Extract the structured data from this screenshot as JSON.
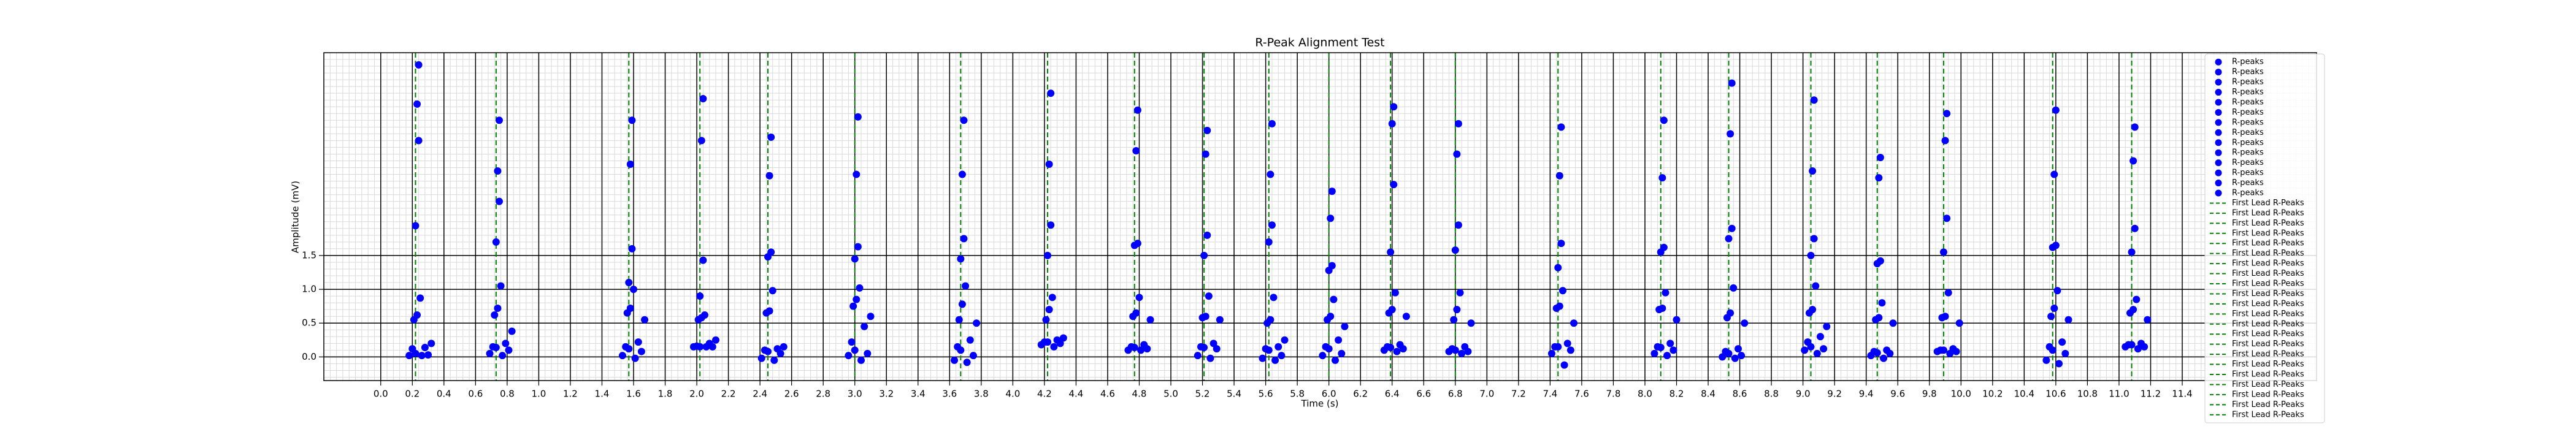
{
  "chart_data": {
    "type": "scatter",
    "title": "R-Peak Alignment Test",
    "x_label": "Time (s)",
    "y_label": "Amplitude (mV)",
    "xlim": [
      -0.36,
      12.25
    ],
    "ylim": [
      -0.35,
      4.5
    ],
    "xticks": [
      {
        "value": 0,
        "label": "0.0"
      },
      0.2,
      0.4,
      0.6,
      0.8,
      {
        "value": 1,
        "label": "1.0"
      },
      1.2,
      1.4,
      1.6,
      1.8,
      {
        "value": 2,
        "label": "2.0"
      },
      2.2,
      2.4,
      2.6,
      2.8,
      {
        "value": 3,
        "label": "3.0"
      },
      3.2,
      3.4,
      3.6,
      3.8,
      {
        "value": 4,
        "label": "4.0"
      },
      4.2,
      4.4,
      4.6,
      4.8,
      {
        "value": 5,
        "label": "5.0"
      },
      5.2,
      5.4,
      5.6,
      5.8,
      {
        "value": 6,
        "label": "6.0"
      },
      6.2,
      6.4,
      6.6,
      6.8,
      {
        "value": 7,
        "label": "7.0"
      },
      7.2,
      7.4,
      7.6,
      7.8,
      {
        "value": 8,
        "label": "8.0"
      },
      8.2,
      8.4,
      8.6,
      8.8,
      {
        "value": 9,
        "label": "9.0"
      },
      9.2,
      9.4,
      9.6,
      9.8,
      {
        "value": 10,
        "label": "10.0"
      },
      10.2,
      10.4,
      10.6,
      10.8,
      {
        "value": 11,
        "label": "11.0"
      },
      11.2,
      11.4
    ],
    "yticks": [
      {
        "value": 0,
        "label": "0.0"
      },
      0.5,
      {
        "value": 1,
        "label": "1.0"
      },
      1.5
    ],
    "grid": true,
    "minor_grid": true,
    "legend": "upper right",
    "series": [
      {
        "name": "R-peaks",
        "color": "#0000ff",
        "x": [
          0.24,
          0.75,
          1.59,
          2.04,
          2.47,
          3.02,
          3.69,
          4.24,
          4.79,
          5.23,
          5.64,
          6.02,
          6.41,
          6.82,
          7.47,
          8.12,
          8.55,
          9.07,
          9.49,
          9.91,
          10.6,
          11.1
        ],
        "y": [
          4.32,
          3.5,
          3.5,
          3.82,
          3.25,
          3.55,
          3.5,
          3.9,
          3.65,
          3.35,
          3.45,
          2.45,
          3.7,
          3.45,
          3.4,
          3.5,
          4.05,
          3.8,
          2.95,
          3.6,
          3.65,
          3.4
        ]
      },
      {
        "name": "R-peaks",
        "color": "#0000ff",
        "x": [
          0.23,
          0.74,
          1.58,
          2.03,
          2.46,
          3.01,
          3.68,
          4.23,
          4.78,
          5.22,
          5.63,
          6.01,
          6.4,
          6.81,
          7.46,
          8.11,
          8.54,
          9.06,
          9.48,
          9.9,
          10.59,
          11.09
        ],
        "y": [
          3.74,
          2.75,
          2.85,
          3.2,
          2.68,
          2.7,
          2.7,
          2.85,
          3.05,
          3.0,
          2.7,
          2.05,
          3.45,
          3.0,
          2.68,
          2.65,
          3.3,
          2.75,
          2.65,
          3.2,
          2.7,
          2.9
        ]
      },
      {
        "name": "R-peaks",
        "color": "#0000ff",
        "x": [
          0.24,
          0.75,
          1.59,
          2.04,
          2.47,
          3.02,
          3.69,
          4.24,
          4.79,
          5.23,
          5.64,
          6.02,
          6.41,
          6.82,
          7.47,
          8.12,
          8.55,
          9.07,
          9.49,
          9.91,
          10.6,
          11.1
        ],
        "y": [
          3.2,
          2.3,
          1.6,
          1.43,
          1.55,
          1.63,
          1.75,
          1.95,
          1.68,
          1.8,
          1.95,
          1.35,
          2.55,
          1.95,
          1.68,
          1.62,
          1.9,
          1.75,
          1.42,
          2.05,
          1.65,
          1.9
        ]
      },
      {
        "name": "R-peaks",
        "color": "#0000ff",
        "x": [
          0.22,
          0.73,
          1.57,
          2.02,
          2.45,
          3.0,
          3.67,
          4.22,
          4.77,
          5.21,
          5.62,
          6.0,
          6.39,
          6.8,
          7.45,
          8.1,
          8.53,
          9.05,
          9.47,
          9.89,
          10.58,
          11.08
        ],
        "y": [
          1.94,
          1.7,
          1.1,
          0.9,
          1.48,
          1.45,
          1.45,
          1.5,
          1.65,
          1.5,
          1.7,
          1.28,
          1.55,
          1.58,
          1.32,
          1.55,
          1.75,
          1.5,
          1.38,
          1.55,
          1.62,
          1.55
        ]
      },
      {
        "name": "R-peaks",
        "color": "#0000ff",
        "x": [
          0.25,
          0.76,
          1.6,
          2.05,
          2.48,
          3.03,
          3.7,
          4.25,
          4.8,
          5.24,
          5.65,
          6.03,
          6.42,
          6.83,
          7.48,
          8.13,
          8.56,
          9.08,
          9.5,
          9.92,
          10.61,
          11.11
        ],
        "y": [
          0.87,
          1.05,
          1.0,
          0.62,
          0.98,
          1.02,
          1.05,
          0.88,
          0.88,
          0.9,
          0.88,
          0.85,
          0.95,
          0.95,
          0.98,
          0.95,
          1.02,
          1.05,
          0.8,
          0.95,
          0.98,
          0.85
        ]
      },
      {
        "name": "R-peaks",
        "color": "#0000ff",
        "x": [
          0.23,
          0.74,
          1.58,
          2.03,
          2.46,
          3.01,
          3.68,
          4.23,
          4.78,
          5.22,
          5.63,
          6.01,
          6.4,
          6.81,
          7.46,
          8.11,
          8.54,
          9.06,
          9.48,
          9.9,
          10.59,
          11.09
        ],
        "y": [
          0.62,
          0.72,
          0.72,
          0.58,
          0.68,
          0.85,
          0.78,
          0.7,
          0.65,
          0.6,
          0.55,
          0.6,
          0.7,
          0.7,
          0.75,
          0.72,
          0.65,
          0.7,
          0.58,
          0.6,
          0.72,
          0.7
        ]
      },
      {
        "name": "R-peaks",
        "color": "#0000ff",
        "x": [
          0.21,
          0.72,
          1.56,
          2.01,
          2.44,
          2.99,
          3.66,
          4.21,
          4.76,
          5.2,
          5.61,
          5.99,
          6.38,
          6.79,
          7.44,
          8.09,
          8.52,
          9.04,
          9.46,
          9.88,
          10.57,
          11.07
        ],
        "y": [
          0.55,
          0.62,
          0.65,
          0.55,
          0.65,
          0.75,
          0.55,
          0.55,
          0.6,
          0.58,
          0.5,
          0.55,
          0.65,
          0.55,
          0.72,
          0.7,
          0.58,
          0.65,
          0.55,
          0.58,
          0.6,
          0.65
        ]
      },
      {
        "name": "R-peaks",
        "color": "#0000ff",
        "x": [
          0.32,
          0.83,
          1.67,
          2.12,
          2.55,
          3.1,
          3.77,
          4.32,
          4.87,
          5.31,
          5.72,
          6.1,
          6.49,
          6.9,
          7.55,
          8.2,
          8.63,
          9.15,
          9.57,
          9.99,
          10.68,
          11.18
        ],
        "y": [
          0.2,
          0.38,
          0.55,
          0.25,
          0.15,
          0.6,
          0.5,
          0.28,
          0.55,
          0.55,
          0.25,
          0.45,
          0.6,
          0.5,
          0.5,
          0.55,
          0.5,
          0.45,
          0.5,
          0.5,
          0.55,
          0.55
        ]
      },
      {
        "name": "R-peaks",
        "color": "#0000ff",
        "x": [
          0.28,
          0.79,
          1.63,
          2.08,
          2.51,
          3.06,
          3.73,
          4.28,
          4.83,
          5.27,
          5.68,
          6.06,
          6.45,
          6.86,
          7.51,
          8.16,
          8.59,
          9.11,
          9.53,
          9.95,
          10.64,
          11.14
        ],
        "y": [
          0.14,
          0.2,
          0.22,
          0.2,
          0.12,
          0.45,
          0.25,
          0.25,
          0.18,
          0.2,
          0.15,
          0.25,
          0.18,
          0.15,
          0.2,
          0.2,
          0.12,
          0.3,
          0.1,
          0.12,
          0.22,
          0.2
        ]
      },
      {
        "name": "R-peaks",
        "color": "#0000ff",
        "x": [
          0.2,
          0.71,
          1.55,
          2.0,
          2.43,
          2.98,
          3.65,
          4.2,
          4.75,
          5.19,
          5.6,
          5.98,
          6.37,
          6.78,
          7.43,
          8.08,
          8.51,
          9.03,
          9.45,
          9.87,
          10.56,
          11.06
        ],
        "y": [
          0.12,
          0.15,
          0.15,
          0.16,
          0.1,
          0.22,
          0.15,
          0.22,
          0.15,
          0.15,
          0.12,
          0.15,
          0.15,
          0.12,
          0.15,
          0.15,
          0.08,
          0.22,
          0.08,
          0.1,
          0.15,
          0.18
        ]
      },
      {
        "name": "R-peaks",
        "color": "#0000ff",
        "x": [
          0.22,
          0.73,
          1.57,
          2.02,
          2.45,
          3.0,
          3.67,
          4.22,
          4.77,
          5.21,
          5.62,
          6.0,
          6.39,
          6.8,
          7.45,
          8.1,
          8.53,
          9.05,
          9.47,
          9.89,
          10.58,
          11.08
        ],
        "y": [
          0.05,
          0.14,
          0.12,
          0.15,
          0.08,
          0.1,
          0.1,
          0.22,
          0.14,
          0.14,
          0.1,
          0.12,
          0.14,
          0.1,
          0.15,
          0.14,
          0.05,
          0.15,
          0.06,
          0.1,
          0.1,
          0.18
        ]
      },
      {
        "name": "R-peaks",
        "color": "#0000ff",
        "x": [
          0.3,
          0.81,
          1.65,
          2.1,
          2.53,
          3.08,
          3.75,
          4.3,
          4.85,
          5.29,
          5.7,
          6.08,
          6.47,
          6.88,
          7.53,
          8.18,
          8.61,
          9.13,
          9.55,
          9.97,
          10.66,
          11.16
        ],
        "y": [
          0.03,
          0.1,
          0.08,
          0.15,
          0.05,
          0.05,
          0.02,
          0.2,
          0.12,
          0.12,
          0.02,
          0.05,
          0.12,
          0.08,
          0.1,
          0.1,
          0.02,
          0.12,
          0.05,
          0.08,
          0.05,
          0.15
        ]
      },
      {
        "name": "R-peaks",
        "color": "#0000ff",
        "x": [
          0.18,
          0.69,
          1.53,
          1.98,
          2.41,
          2.96,
          3.63,
          4.18,
          4.73,
          5.17,
          5.58,
          5.96,
          6.35,
          6.76,
          7.41,
          8.06,
          8.49,
          9.01,
          9.43,
          9.85,
          10.54,
          11.04
        ],
        "y": [
          0.02,
          0.05,
          0.02,
          0.15,
          -0.02,
          0.02,
          -0.05,
          0.18,
          0.1,
          0.02,
          -0.02,
          0.02,
          0.1,
          0.08,
          0.05,
          0.05,
          0.0,
          0.1,
          0.02,
          0.08,
          -0.05,
          0.15
        ]
      },
      {
        "name": "R-peaks",
        "color": "#0000ff",
        "x": [
          0.26,
          0.77,
          1.61,
          2.06,
          2.49,
          3.04,
          3.71,
          4.26,
          4.81,
          5.25,
          5.66,
          6.04,
          6.43,
          6.84,
          7.49,
          8.14,
          8.57,
          9.09,
          9.51,
          9.93,
          10.62,
          11.12
        ],
        "y": [
          0.02,
          0.02,
          -0.02,
          0.15,
          -0.05,
          -0.05,
          -0.08,
          0.15,
          0.1,
          -0.02,
          -0.05,
          -0.05,
          0.08,
          0.05,
          -0.12,
          0.02,
          -0.02,
          0.05,
          -0.02,
          0.05,
          -0.1,
          0.12
        ]
      }
    ],
    "vlines": [
      {
        "name": "First Lead R-Peaks",
        "color": "#008000",
        "x": 0.22
      },
      {
        "name": "First Lead R-Peaks",
        "color": "#008000",
        "x": 0.73
      },
      {
        "name": "First Lead R-Peaks",
        "color": "#008000",
        "x": 1.57
      },
      {
        "name": "First Lead R-Peaks",
        "color": "#008000",
        "x": 2.02
      },
      {
        "name": "First Lead R-Peaks",
        "color": "#008000",
        "x": 2.45
      },
      {
        "name": "First Lead R-Peaks",
        "color": "#008000",
        "x": 3.0
      },
      {
        "name": "First Lead R-Peaks",
        "color": "#008000",
        "x": 3.67
      },
      {
        "name": "First Lead R-Peaks",
        "color": "#008000",
        "x": 4.22
      },
      {
        "name": "First Lead R-Peaks",
        "color": "#008000",
        "x": 4.77
      },
      {
        "name": "First Lead R-Peaks",
        "color": "#008000",
        "x": 5.21
      },
      {
        "name": "First Lead R-Peaks",
        "color": "#008000",
        "x": 5.62
      },
      {
        "name": "First Lead R-Peaks",
        "color": "#008000",
        "x": 6.0
      },
      {
        "name": "First Lead R-Peaks",
        "color": "#008000",
        "x": 6.39
      },
      {
        "name": "First Lead R-Peaks",
        "color": "#008000",
        "x": 6.8
      },
      {
        "name": "First Lead R-Peaks",
        "color": "#008000",
        "x": 7.45
      },
      {
        "name": "First Lead R-Peaks",
        "color": "#008000",
        "x": 8.1
      },
      {
        "name": "First Lead R-Peaks",
        "color": "#008000",
        "x": 8.53
      },
      {
        "name": "First Lead R-Peaks",
        "color": "#008000",
        "x": 9.05
      },
      {
        "name": "First Lead R-Peaks",
        "color": "#008000",
        "x": 9.47
      },
      {
        "name": "First Lead R-Peaks",
        "color": "#008000",
        "x": 9.89
      },
      {
        "name": "First Lead R-Peaks",
        "color": "#008000",
        "x": 10.58
      },
      {
        "name": "First Lead R-Peaks",
        "color": "#008000",
        "x": 11.08
      }
    ]
  }
}
